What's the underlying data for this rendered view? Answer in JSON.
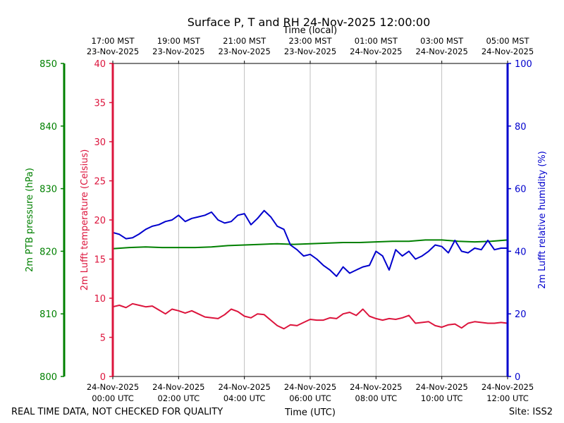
{
  "chart_data": {
    "type": "line",
    "title": "Surface P, T and RH 24-Nov-2025 12:00:00",
    "top_axis_label": "Time (local)",
    "bottom_axis_label": "Time (UTC)",
    "footer_left": "REAL TIME DATA, NOT CHECKED FOR QUALITY",
    "footer_right": "Site: ISS2",
    "x_range_hours": [
      0,
      12
    ],
    "utc_ticks": [
      {
        "hour": 0,
        "line1": "24-Nov-2025",
        "line2": "00:00 UTC"
      },
      {
        "hour": 2,
        "line1": "24-Nov-2025",
        "line2": "02:00 UTC"
      },
      {
        "hour": 4,
        "line1": "24-Nov-2025",
        "line2": "04:00 UTC"
      },
      {
        "hour": 6,
        "line1": "24-Nov-2025",
        "line2": "06:00 UTC"
      },
      {
        "hour": 8,
        "line1": "24-Nov-2025",
        "line2": "08:00 UTC"
      },
      {
        "hour": 10,
        "line1": "24-Nov-2025",
        "line2": "10:00 UTC"
      },
      {
        "hour": 12,
        "line1": "24-Nov-2025",
        "line2": "12:00 UTC"
      }
    ],
    "local_ticks": [
      {
        "hour": 0,
        "line1": "17:00 MST",
        "line2": "23-Nov-2025"
      },
      {
        "hour": 2,
        "line1": "19:00 MST",
        "line2": "23-Nov-2025"
      },
      {
        "hour": 4,
        "line1": "21:00 MST",
        "line2": "23-Nov-2025"
      },
      {
        "hour": 6,
        "line1": "23:00 MST",
        "line2": "23-Nov-2025"
      },
      {
        "hour": 8,
        "line1": "01:00 MST",
        "line2": "24-Nov-2025"
      },
      {
        "hour": 10,
        "line1": "03:00 MST",
        "line2": "24-Nov-2025"
      },
      {
        "hour": 12,
        "line1": "05:00 MST",
        "line2": "24-Nov-2025"
      }
    ],
    "axes": {
      "pressure": {
        "label": "2m PTB pressure (hPa)",
        "ylim": [
          800,
          850
        ],
        "ticks": [
          800,
          810,
          820,
          830,
          840,
          850
        ],
        "color": "#008000"
      },
      "temperature": {
        "label": "2m Lufft temperature (Celsius)",
        "ylim": [
          0,
          40
        ],
        "ticks": [
          0,
          5,
          10,
          15,
          20,
          25,
          30,
          35,
          40
        ],
        "color": "#dc143c"
      },
      "humidity": {
        "label": "2m Lufft relative humidity (%)",
        "ylim": [
          0,
          100
        ],
        "ticks": [
          0,
          20,
          40,
          60,
          80,
          100
        ],
        "color": "#0000cd"
      }
    },
    "series": [
      {
        "name": "2m PTB pressure",
        "axis": "pressure",
        "color": "#008000",
        "x": [
          0,
          0.5,
          1,
          1.5,
          2,
          2.5,
          3,
          3.5,
          4,
          4.5,
          5,
          5.5,
          6,
          6.5,
          7,
          7.5,
          8,
          8.5,
          9,
          9.5,
          10,
          10.5,
          11,
          11.5,
          12
        ],
        "y": [
          820.4,
          820.6,
          820.7,
          820.6,
          820.6,
          820.6,
          820.7,
          820.9,
          821.0,
          821.1,
          821.2,
          821.1,
          821.2,
          821.3,
          821.4,
          821.4,
          821.5,
          821.6,
          821.6,
          821.8,
          821.8,
          821.6,
          821.5,
          821.6,
          821.8
        ]
      },
      {
        "name": "2m Lufft temperature",
        "axis": "temperature",
        "color": "#dc143c",
        "x": [
          0,
          0.2,
          0.4,
          0.6,
          0.8,
          1.0,
          1.2,
          1.4,
          1.6,
          1.8,
          2.0,
          2.2,
          2.4,
          2.6,
          2.8,
          3.0,
          3.2,
          3.4,
          3.6,
          3.8,
          4.0,
          4.2,
          4.4,
          4.6,
          4.8,
          5.0,
          5.2,
          5.4,
          5.6,
          5.8,
          6.0,
          6.2,
          6.4,
          6.6,
          6.8,
          7.0,
          7.2,
          7.4,
          7.6,
          7.8,
          8.0,
          8.2,
          8.4,
          8.6,
          8.8,
          9.0,
          9.2,
          9.4,
          9.6,
          9.8,
          10.0,
          10.2,
          10.4,
          10.6,
          10.8,
          11.0,
          11.2,
          11.4,
          11.6,
          11.8,
          12.0
        ],
        "y": [
          8.9,
          9.1,
          8.8,
          9.3,
          9.1,
          8.9,
          9.0,
          8.5,
          8.0,
          8.6,
          8.4,
          8.1,
          8.4,
          8.0,
          7.6,
          7.5,
          7.4,
          7.9,
          8.6,
          8.3,
          7.7,
          7.5,
          8.0,
          7.9,
          7.2,
          6.5,
          6.1,
          6.6,
          6.5,
          6.9,
          7.3,
          7.2,
          7.2,
          7.5,
          7.4,
          8.0,
          8.2,
          7.8,
          8.6,
          7.7,
          7.4,
          7.2,
          7.4,
          7.3,
          7.5,
          7.8,
          6.8,
          6.9,
          7.0,
          6.5,
          6.3,
          6.6,
          6.7,
          6.2,
          6.8,
          7.0,
          6.9,
          6.8,
          6.8,
          6.9,
          6.8
        ]
      },
      {
        "name": "2m Lufft relative humidity",
        "axis": "humidity",
        "color": "#0000cd",
        "x": [
          0,
          0.2,
          0.4,
          0.6,
          0.8,
          1.0,
          1.2,
          1.4,
          1.6,
          1.8,
          2.0,
          2.2,
          2.4,
          2.6,
          2.8,
          3.0,
          3.2,
          3.4,
          3.6,
          3.8,
          4.0,
          4.2,
          4.4,
          4.6,
          4.8,
          5.0,
          5.2,
          5.4,
          5.6,
          5.8,
          6.0,
          6.2,
          6.4,
          6.6,
          6.8,
          7.0,
          7.2,
          7.4,
          7.6,
          7.8,
          8.0,
          8.2,
          8.4,
          8.6,
          8.8,
          9.0,
          9.2,
          9.4,
          9.6,
          9.8,
          10.0,
          10.2,
          10.4,
          10.6,
          10.8,
          11.0,
          11.2,
          11.4,
          11.6,
          11.8,
          12.0
        ],
        "y": [
          46.0,
          45.4,
          44.0,
          44.3,
          45.5,
          47.0,
          48.0,
          48.5,
          49.5,
          50.0,
          51.5,
          49.5,
          50.5,
          51.0,
          51.5,
          52.5,
          50.0,
          49.0,
          49.5,
          51.5,
          52.0,
          48.5,
          50.5,
          53.0,
          51.0,
          48.0,
          47.0,
          42.0,
          40.5,
          38.5,
          39.0,
          37.5,
          35.5,
          34.0,
          32.0,
          35.0,
          33.0,
          34.0,
          35.0,
          35.5,
          40.0,
          38.5,
          34.0,
          40.5,
          38.5,
          40.0,
          37.5,
          38.5,
          40.0,
          42.0,
          41.5,
          39.5,
          43.5,
          40.0,
          39.5,
          41.0,
          40.5,
          43.5,
          40.5,
          41.0,
          41.0
        ]
      }
    ]
  }
}
